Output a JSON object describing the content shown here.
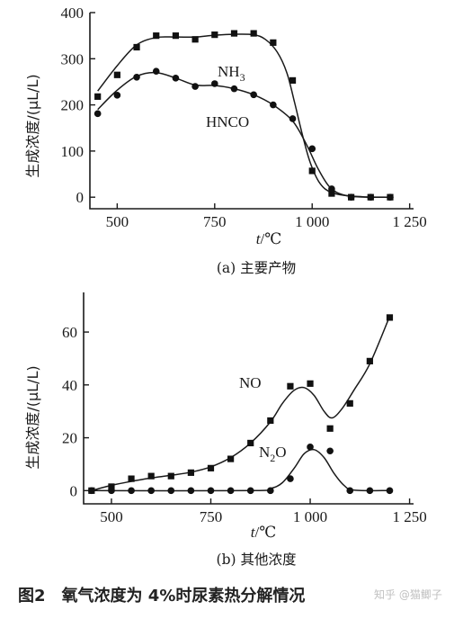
{
  "chart_data": [
    {
      "type": "line",
      "panel_caption": "(a)  主要产物",
      "ylabel": "生成浓度/(μL/L)",
      "xlabel": "t/℃",
      "xlim": [
        430,
        1260
      ],
      "ylim": [
        -25,
        400
      ],
      "xticks": [
        500,
        750,
        1000,
        1250
      ],
      "xtick_labels": [
        "500",
        "750",
        "1 000",
        "1 250"
      ],
      "yticks": [
        0,
        100,
        200,
        300,
        400
      ],
      "ytick_labels": [
        "0",
        "100",
        "200",
        "300",
        "400"
      ],
      "series": [
        {
          "name": "NH3",
          "label_main": "NH",
          "label_sub": "3",
          "marker": "square",
          "points": [
            [
              450,
              218
            ],
            [
              500,
              265
            ],
            [
              550,
              325
            ],
            [
              600,
              350
            ],
            [
              650,
              350
            ],
            [
              700,
              342
            ],
            [
              750,
              352
            ],
            [
              800,
              355
            ],
            [
              850,
              355
            ],
            [
              900,
              335
            ],
            [
              950,
              253
            ],
            [
              1000,
              57
            ],
            [
              1050,
              8
            ],
            [
              1100,
              0
            ],
            [
              1150,
              0
            ],
            [
              1200,
              0
            ]
          ],
          "curve": [
            [
              450,
              230
            ],
            [
              500,
              285
            ],
            [
              550,
              330
            ],
            [
              600,
              346
            ],
            [
              650,
              347
            ],
            [
              700,
              347
            ],
            [
              750,
              351
            ],
            [
              800,
              353
            ],
            [
              850,
              352
            ],
            [
              880,
              342
            ],
            [
              910,
              315
            ],
            [
              935,
              270
            ],
            [
              955,
              205
            ],
            [
              975,
              135
            ],
            [
              995,
              75
            ],
            [
              1020,
              30
            ],
            [
              1050,
              10
            ],
            [
              1100,
              2
            ],
            [
              1150,
              0
            ],
            [
              1200,
              0
            ]
          ]
        },
        {
          "name": "HNCO",
          "label_main": "HNCO",
          "label_sub": "",
          "marker": "circle",
          "points": [
            [
              450,
              181
            ],
            [
              500,
              221
            ],
            [
              550,
              260
            ],
            [
              600,
              273
            ],
            [
              650,
              258
            ],
            [
              700,
              240
            ],
            [
              750,
              246
            ],
            [
              800,
              235
            ],
            [
              850,
              222
            ],
            [
              900,
              200
            ],
            [
              950,
              170
            ],
            [
              1000,
              105
            ],
            [
              1050,
              18
            ],
            [
              1100,
              0
            ],
            [
              1150,
              0
            ],
            [
              1200,
              0
            ]
          ],
          "curve": [
            [
              450,
              190
            ],
            [
              500,
              232
            ],
            [
              550,
              262
            ],
            [
              600,
              270
            ],
            [
              650,
              258
            ],
            [
              700,
              243
            ],
            [
              750,
              242
            ],
            [
              800,
              235
            ],
            [
              850,
              222
            ],
            [
              900,
              200
            ],
            [
              950,
              165
            ],
            [
              985,
              115
            ],
            [
              1015,
              62
            ],
            [
              1045,
              22
            ],
            [
              1080,
              5
            ],
            [
              1130,
              1
            ],
            [
              1200,
              0
            ]
          ]
        }
      ]
    },
    {
      "type": "line",
      "panel_caption": "(b)  其他浓度",
      "ylabel": "生成浓度/(μL/L)",
      "xlabel": "t/℃",
      "xlim": [
        430,
        1260
      ],
      "ylim": [
        -5,
        75
      ],
      "xticks": [
        500,
        750,
        1000,
        1250
      ],
      "xtick_labels": [
        "500",
        "750",
        "1 000",
        "1 250"
      ],
      "yticks": [
        0,
        20,
        40,
        60
      ],
      "ytick_labels": [
        "0",
        "20",
        "40",
        "60"
      ],
      "series": [
        {
          "name": "NO",
          "label_main": "NO",
          "label_sub": "",
          "marker": "square",
          "points": [
            [
              450,
              0
            ],
            [
              500,
              1.5
            ],
            [
              550,
              4.5
            ],
            [
              600,
              5.5
            ],
            [
              650,
              5.5
            ],
            [
              700,
              6.8
            ],
            [
              750,
              8.5
            ],
            [
              800,
              12
            ],
            [
              850,
              18
            ],
            [
              900,
              26.5
            ],
            [
              950,
              39.5
            ],
            [
              1000,
              40.5
            ],
            [
              1050,
              23.5
            ],
            [
              1100,
              33
            ],
            [
              1150,
              49
            ],
            [
              1200,
              65.5
            ]
          ],
          "curve": [
            [
              450,
              0
            ],
            [
              500,
              2
            ],
            [
              550,
              3.5
            ],
            [
              600,
              4.8
            ],
            [
              650,
              5.8
            ],
            [
              700,
              7
            ],
            [
              750,
              9
            ],
            [
              800,
              12.5
            ],
            [
              850,
              18
            ],
            [
              900,
              26
            ],
            [
              930,
              33
            ],
            [
              960,
              38
            ],
            [
              985,
              39
            ],
            [
              1010,
              36
            ],
            [
              1035,
              30
            ],
            [
              1055,
              27.5
            ],
            [
              1080,
              31
            ],
            [
              1110,
              38
            ],
            [
              1150,
              48
            ],
            [
              1200,
              66
            ]
          ]
        },
        {
          "name": "N2O",
          "label_main": "N",
          "label_sub": "2",
          "label_tail": "O",
          "marker": "circle",
          "points": [
            [
              450,
              0
            ],
            [
              500,
              0
            ],
            [
              550,
              0
            ],
            [
              600,
              0
            ],
            [
              650,
              0
            ],
            [
              700,
              0
            ],
            [
              750,
              0
            ],
            [
              800,
              0
            ],
            [
              850,
              0
            ],
            [
              900,
              0
            ],
            [
              950,
              4.5
            ],
            [
              1000,
              16.5
            ],
            [
              1050,
              15
            ],
            [
              1100,
              0
            ],
            [
              1150,
              0
            ],
            [
              1200,
              0
            ]
          ],
          "curve": [
            [
              450,
              0
            ],
            [
              850,
              0
            ],
            [
              900,
              0.8
            ],
            [
              930,
              3
            ],
            [
              960,
              8.5
            ],
            [
              985,
              14
            ],
            [
              1010,
              15.5
            ],
            [
              1035,
              12.5
            ],
            [
              1060,
              6.5
            ],
            [
              1085,
              2
            ],
            [
              1110,
              0.2
            ],
            [
              1200,
              0
            ]
          ]
        }
      ]
    }
  ],
  "figure_caption": {
    "number": "图2",
    "text": "氧气浓度为 4%时尿素热分解情况"
  },
  "watermark": "知乎 @猫鲫子"
}
